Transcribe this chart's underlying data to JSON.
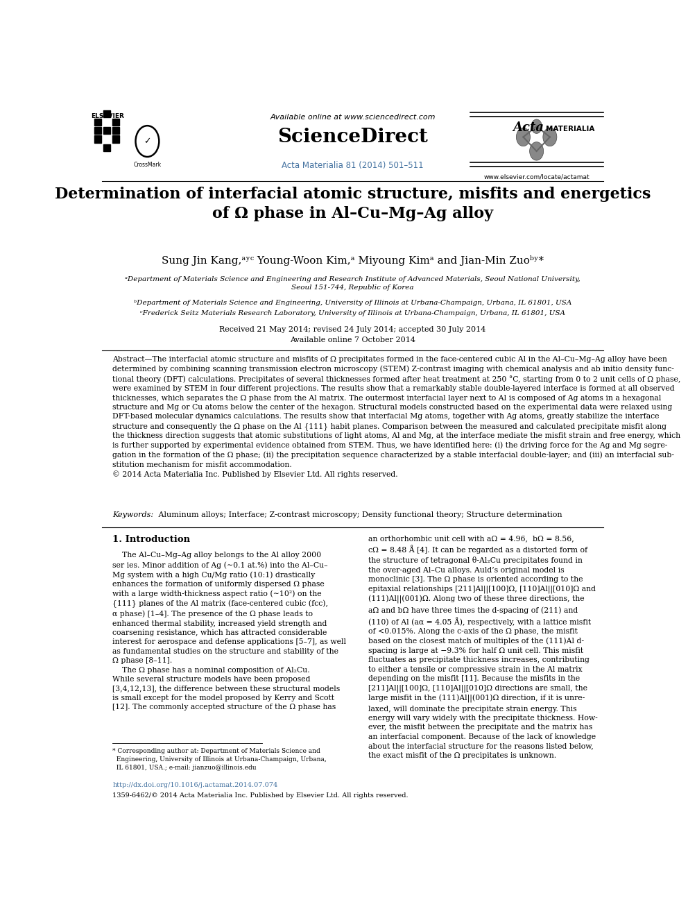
{
  "page_width": 9.92,
  "page_height": 13.23,
  "bg_color": "#ffffff",
  "header_available": "Available online at www.sciencedirect.com",
  "header_journal_ref": "Acta Materialia 81 (2014) 501–511",
  "header_journal_ref_color": "#4472a0",
  "header_website": "www.elsevier.com/locate/actamat",
  "title": "Determination of interfacial atomic structure, misfits and energetics\nof Ω phase in Al–Cu–Mg–Ag alloy",
  "authors_line": "Sung Jin Kang,ᵃʸᶜ Young-Woon Kim,ᵃ Miyoung Kimᵃ and Jian-Min Zuoᵇʸ*",
  "affil_a": "ᵃDepartment of Materials Science and Engineering and Research Institute of Advanced Materials, Seoul National University,\nSeoul 151-744, Republic of Korea",
  "affil_b": "ᵇDepartment of Materials Science and Engineering, University of Illinois at Urbana-Champaign, Urbana, IL 61801, USA",
  "affil_c": "ᶜFrederick Seitz Materials Research Laboratory, University of Illinois at Urbana-Champaign, Urbana, IL 61801, USA",
  "dates": "Received 21 May 2014; revised 24 July 2014; accepted 30 July 2014\nAvailable online 7 October 2014",
  "abstract_full": "Abstract—The interfacial atomic structure and misfits of Ω precipitates formed in the face-centered cubic Al in the Al–Cu–Mg–Ag alloy have been\ndetermined by combining scanning transmission electron microscopy (STEM) Z-contrast imaging with chemical analysis and ab initio density func-\ntional theory (DFT) calculations. Precipitates of several thicknesses formed after heat treatment at 250 °C, starting from 0 to 2 unit cells of Ω phase,\nwere examined by STEM in four different projections. The results show that a remarkably stable double-layered interface is formed at all observed\nthicknesses, which separates the Ω phase from the Al matrix. The outermost interfacial layer next to Al is composed of Ag atoms in a hexagonal\nstructure and Mg or Cu atoms below the center of the hexagon. Structural models constructed based on the experimental data were relaxed using\nDFT-based molecular dynamics calculations. The results show that interfacial Mg atoms, together with Ag atoms, greatly stabilize the interface\nstructure and consequently the Ω phase on the Al {111} habit planes. Comparison between the measured and calculated precipitate misfit along\nthe thickness direction suggests that atomic substitutions of light atoms, Al and Mg, at the interface mediate the misfit strain and free energy, which\nis further supported by experimental evidence obtained from STEM. Thus, we have identified here: (i) the driving force for the Ag and Mg segre-\ngation in the formation of the Ω phase; (ii) the precipitation sequence characterized by a stable interfacial double-layer; and (iii) an interfacial sub-\nstitution mechanism for misfit accommodation.\n© 2014 Acta Materialia Inc. Published by Elsevier Ltd. All rights reserved.",
  "keywords_label": "Keywords:",
  "keywords_text": " Aluminum alloys; Interface; Z-contrast microscopy; Density functional theory; Structure determination",
  "section1_title": "1. Introduction",
  "section1_left": "    The Al–Cu–Mg–Ag alloy belongs to the Al alloy 2000\nser ies. Minor addition of Ag (∼0.1 at.%) into the Al–Cu–\nMg system with a high Cu/Mg ratio (10:1) drastically\nenhances the formation of uniformly dispersed Ω phase\nwith a large width-thickness aspect ratio (∼10²) on the\n{111} planes of the Al matrix (face-centered cubic (fcc),\nα phase) [1–4]. The presence of the Ω phase leads to\nenhanced thermal stability, increased yield strength and\ncoarsening resistance, which has attracted considerable\ninterest for aerospace and defense applications [5–7], as well\nas fundamental studies on the structure and stability of the\nΩ phase [8–11].\n    The Ω phase has a nominal composition of Al₂Cu.\nWhile several structure models have been proposed\n[3,4,12,13], the difference between these structural models\nis small except for the model proposed by Kerry and Scott\n[12]. The commonly accepted structure of the Ω phase has",
  "section1_right": "an orthorhombic unit cell with aΩ = 4.96,  bΩ = 8.56,\ncΩ = 8.48 Å [4]. It can be regarded as a distorted form of\nthe structure of tetragonal θ-Al₂Cu precipitates found in\nthe over-aged Al–Cu alloys. Auld’s original model is\nmonoclinic [3]. The Ω phase is oriented according to the\nepitaxial relationships [211]Al||[100]Ω, [110]Al||[010]Ω and\n(111)Al||(001)Ω. Along two of these three directions, the\naΩ and bΩ have three times the d-spacing of (211) and\n(110) of Al (aα = 4.05 Å), respectively, with a lattice misfit\nof <0.015%. Along the c-axis of the Ω phase, the misfit\nbased on the closest match of multiples of the (111)Al d-\nspacing is large at −9.3% for half Ω unit cell. This misfit\nfluctuates as precipitate thickness increases, contributing\nto either a tensile or compressive strain in the Al matrix\ndepending on the misfit [11]. Because the misfits in the\n[211]Al||[100]Ω, [110]Al||[010]Ω directions are small, the\nlarge misfit in the (111)Al||(001)Ω direction, if it is unre-\nlaxed, will dominate the precipitate strain energy. This\nenergy will vary widely with the precipitate thickness. How-\never, the misfit between the precipitate and the matrix has\nan interfacial component. Because of the lack of knowledge\nabout the interfacial structure for the reasons listed below,\nthe exact misfit of the Ω precipitates is unknown.",
  "footnote": "* Corresponding author at: Department of Materials Science and\n  Engineering, University of Illinois at Urbana-Champaign, Urbana,\n  IL 61801, USA.; e-mail: jianzuo@illinois.edu",
  "doi": "http://dx.doi.org/10.1016/j.actamat.2014.07.074",
  "doi_color": "#4472a0",
  "issn": "1359-6462/© 2014 Acta Materialia Inc. Published by Elsevier Ltd. All rights reserved."
}
